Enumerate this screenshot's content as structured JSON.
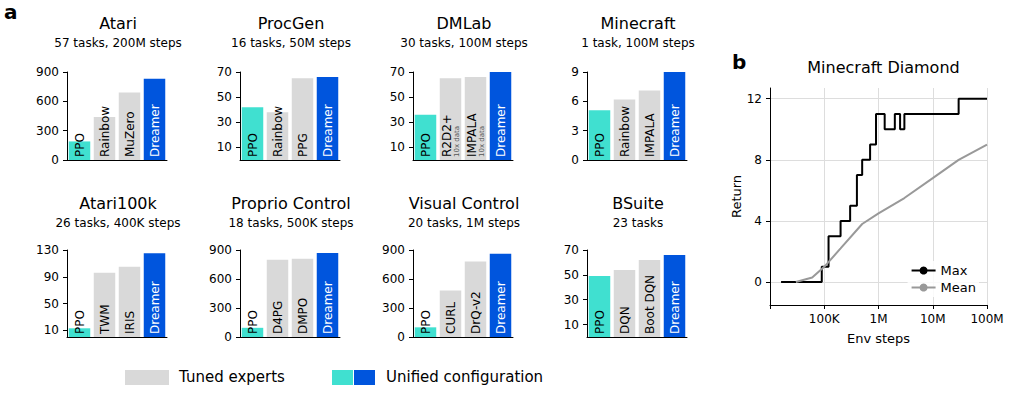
{
  "chart_data": [
    {
      "panel": "a",
      "type": "bar",
      "title": "Atari",
      "subtitle": "57 tasks, 200M steps",
      "categories": [
        "PPO",
        "Rainbow",
        "MuZero",
        "Dreamer"
      ],
      "values": [
        190,
        440,
        690,
        830
      ],
      "colors": [
        "#40e0d0",
        "#d9d9d9",
        "#d9d9d9",
        "#0055dd"
      ],
      "ylim": [
        0,
        900
      ],
      "yticks": [
        0,
        300,
        600,
        900
      ],
      "tick_labels": "y"
    },
    {
      "panel": "a",
      "type": "bar",
      "title": "ProcGen",
      "subtitle": "16 tasks, 50M steps",
      "categories": [
        "PPO",
        "Rainbow",
        "PPG",
        "Dreamer"
      ],
      "values": [
        42,
        38,
        65,
        66
      ],
      "colors": [
        "#40e0d0",
        "#d9d9d9",
        "#d9d9d9",
        "#0055dd"
      ],
      "ylim": [
        0,
        70
      ],
      "yticks": [
        10,
        30,
        50,
        70
      ],
      "tick_labels": "y"
    },
    {
      "panel": "a",
      "type": "bar",
      "title": "DMLab",
      "subtitle": "30 tasks, 100M steps",
      "categories": [
        "PPO",
        "R2D2+",
        "IMPALA",
        "Dreamer"
      ],
      "values": [
        36,
        65,
        66,
        70
      ],
      "colors": [
        "#40e0d0",
        "#d9d9d9",
        "#d9d9d9",
        "#0055dd"
      ],
      "ylim": [
        0,
        70
      ],
      "yticks": [
        10,
        30,
        50,
        70
      ],
      "tick_labels": "y",
      "annotations": [
        {
          "category": "R2D2+",
          "text": "10x data"
        },
        {
          "category": "IMPALA",
          "text": "10x data"
        }
      ]
    },
    {
      "panel": "a",
      "type": "bar",
      "title": "Minecraft",
      "subtitle": "1 task, 100M steps",
      "categories": [
        "PPO",
        "Rainbow",
        "IMPALA",
        "Dreamer"
      ],
      "values": [
        5.1,
        6.2,
        7.1,
        9
      ],
      "colors": [
        "#40e0d0",
        "#d9d9d9",
        "#d9d9d9",
        "#0055dd"
      ],
      "ylim": [
        0,
        9
      ],
      "yticks": [
        0,
        3,
        6,
        9
      ],
      "tick_labels": "y"
    },
    {
      "panel": "a",
      "type": "bar",
      "title": "Atari100k",
      "subtitle": "26 tasks, 400K steps",
      "categories": [
        "PPO",
        "TWM",
        "IRIS",
        "Dreamer"
      ],
      "values": [
        13,
        96,
        105,
        125
      ],
      "colors": [
        "#40e0d0",
        "#d9d9d9",
        "#d9d9d9",
        "#0055dd"
      ],
      "ylim": [
        0,
        130
      ],
      "yticks": [
        10,
        50,
        90,
        130
      ],
      "tick_labels": "y"
    },
    {
      "panel": "a",
      "type": "bar",
      "title": "Proprio Control",
      "subtitle": "18 tasks, 500K steps",
      "categories": [
        "PPO",
        "D4PG",
        "DMPO",
        "Dreamer"
      ],
      "values": [
        95,
        800,
        810,
        870
      ],
      "colors": [
        "#40e0d0",
        "#d9d9d9",
        "#d9d9d9",
        "#0055dd"
      ],
      "ylim": [
        0,
        900
      ],
      "yticks": [
        0,
        300,
        600,
        900
      ],
      "tick_labels": "y"
    },
    {
      "panel": "a",
      "type": "bar",
      "title": "Visual Control",
      "subtitle": "20 tasks, 1M steps",
      "categories": [
        "PPO",
        "CURL",
        "DrQ-v2",
        "Dreamer"
      ],
      "values": [
        100,
        480,
        780,
        860
      ],
      "colors": [
        "#40e0d0",
        "#d9d9d9",
        "#d9d9d9",
        "#0055dd"
      ],
      "ylim": [
        0,
        900
      ],
      "yticks": [
        0,
        300,
        600,
        900
      ],
      "tick_labels": "y"
    },
    {
      "panel": "a",
      "type": "bar",
      "title": "BSuite",
      "subtitle": "23 tasks",
      "categories": [
        "PPO",
        "DQN",
        "Boot DQN",
        "Dreamer"
      ],
      "values": [
        49,
        54,
        62,
        66
      ],
      "colors": [
        "#40e0d0",
        "#d9d9d9",
        "#d9d9d9",
        "#0055dd"
      ],
      "ylim": [
        0,
        70
      ],
      "yticks": [
        10,
        30,
        50,
        70
      ],
      "tick_labels": "y"
    },
    {
      "panel": "b",
      "type": "line",
      "title": "Minecraft Diamond",
      "x_label": "Env steps",
      "y_label": "Return",
      "log": "x",
      "grid": true,
      "legend": "lower right",
      "xlim": [
        10000,
        100000000
      ],
      "xticks": [
        {
          "value": 100000,
          "label": "100K"
        },
        {
          "value": 1000000,
          "label": "1M"
        },
        {
          "value": 10000000,
          "label": "10M"
        },
        {
          "value": 100000000,
          "label": "100M"
        }
      ],
      "ylim": [
        -1.5,
        12.7
      ],
      "yticks": [
        0,
        4,
        8,
        12
      ],
      "series": [
        {
          "name": "Max",
          "color": "#000000",
          "line_style": "step",
          "x": [
            16000,
            90000,
            120000,
            200000,
            300000,
            400000,
            500000,
            700000,
            900000,
            1300000,
            2000000,
            2500000,
            3000000,
            30000000,
            100000000
          ],
          "values": [
            0,
            1,
            3,
            4,
            5,
            7,
            8,
            9,
            11,
            10,
            11,
            10,
            11,
            12,
            12
          ]
        },
        {
          "name": "Mean",
          "color": "#999999",
          "line_style": "solid",
          "x": [
            30000,
            60000,
            100000,
            200000,
            500000,
            1000000,
            3000000,
            10000000,
            30000000,
            100000000
          ],
          "values": [
            0,
            0.3,
            1,
            2.2,
            3.8,
            4.5,
            5.5,
            6.8,
            8,
            9
          ]
        }
      ]
    }
  ],
  "figure_legend": [
    {
      "label": "Tuned experts",
      "colors": [
        "#d9d9d9"
      ]
    },
    {
      "label": "Unified configuration",
      "colors": [
        "#40e0d0",
        "#0055dd"
      ]
    }
  ]
}
